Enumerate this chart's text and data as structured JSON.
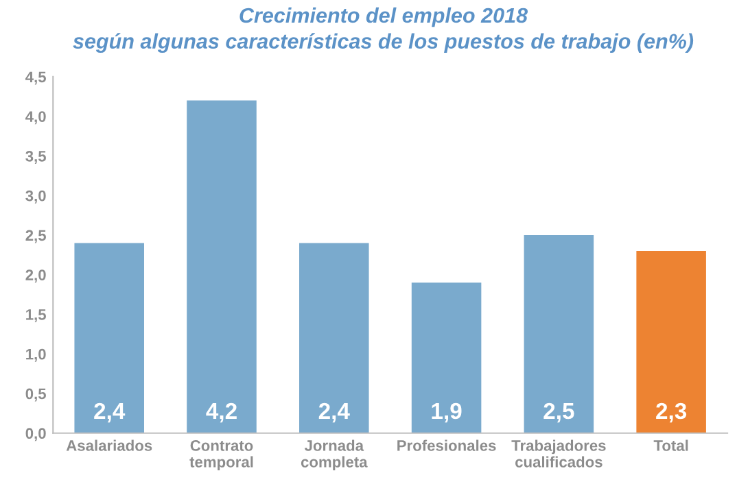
{
  "chart_data": {
    "type": "bar",
    "title": "Crecimiento del empleo 2018\nsegún algunas características de los puestos de trabajo (en%)",
    "categories": [
      "Asalariados",
      "Contrato\ntemporal",
      "Jornada\ncompleta",
      "Profesionales",
      "Trabajadores\ncualificados",
      "Total"
    ],
    "values": [
      2.4,
      4.2,
      2.4,
      1.9,
      2.5,
      2.3
    ],
    "colors": [
      "#7aaacd",
      "#7aaacd",
      "#7aaacd",
      "#7aaacd",
      "#7aaacd",
      "#ed8332"
    ],
    "value_labels": [
      "2,4",
      "4,2",
      "2,4",
      "1,9",
      "2,5",
      "2,3"
    ],
    "ylim": [
      0,
      4.5
    ],
    "yticks": [
      {
        "value": 0,
        "label": "0,0"
      },
      {
        "value": 0.5,
        "label": "0,5"
      },
      {
        "value": 1,
        "label": "1,0"
      },
      {
        "value": 1.5,
        "label": "1,5"
      },
      {
        "value": 2,
        "label": "2,0"
      },
      {
        "value": 2.5,
        "label": "2,5"
      },
      {
        "value": 3,
        "label": "3,0"
      },
      {
        "value": 3.5,
        "label": "3,5"
      },
      {
        "value": 4,
        "label": "4,0"
      },
      {
        "value": 4.5,
        "label": "4,5"
      }
    ],
    "grid": false
  }
}
